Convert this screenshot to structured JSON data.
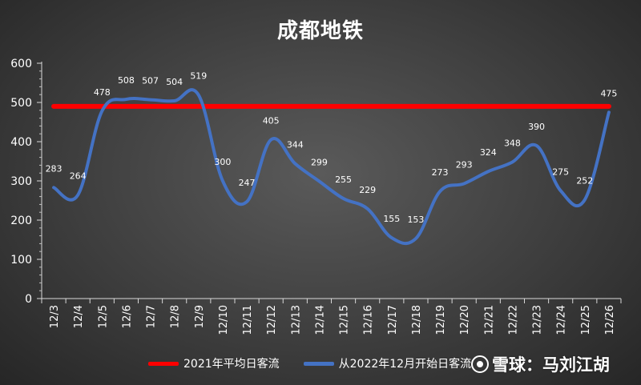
{
  "chart_data": {
    "type": "line",
    "title": "成都地铁",
    "categories": [
      "12/3",
      "12/4",
      "12/5",
      "12/6",
      "12/7",
      "12/8",
      "12/9",
      "12/10",
      "12/11",
      "12/12",
      "12/13",
      "12/14",
      "12/15",
      "12/16",
      "12/17",
      "12/18",
      "12/19",
      "12/20",
      "12/21",
      "12/22",
      "12/23",
      "12/24",
      "12/25",
      "12/26"
    ],
    "ylim": [
      0,
      600
    ],
    "yticks": [
      0,
      100,
      200,
      300,
      400,
      500,
      600
    ],
    "series": [
      {
        "name": "2021年平均日客流",
        "color": "#ff0000",
        "values": [
          490,
          490,
          490,
          490,
          490,
          490,
          490,
          490,
          490,
          490,
          490,
          490,
          490,
          490,
          490,
          490,
          490,
          490,
          490,
          490,
          490,
          490,
          490,
          490
        ]
      },
      {
        "name": "从2022年12月开始日客流",
        "color": "#4472c4",
        "values": [
          283,
          264,
          478,
          508,
          507,
          504,
          519,
          300,
          247,
          405,
          344,
          299,
          255,
          229,
          155,
          153,
          273,
          293,
          324,
          348,
          390,
          275,
          252,
          475
        ],
        "labels": [
          "283",
          "264",
          "478",
          "508",
          "507",
          "504",
          "519",
          "300",
          "247",
          "405",
          "344",
          "299",
          "255",
          "229",
          "155",
          "153",
          "273",
          "293",
          "324",
          "348",
          "390",
          "275",
          "252",
          "475"
        ]
      }
    ],
    "grid": false,
    "legend_position": "bottom"
  },
  "watermark": {
    "text": "雪球：马刘江胡",
    "logo": "snowball-logo-icon"
  }
}
